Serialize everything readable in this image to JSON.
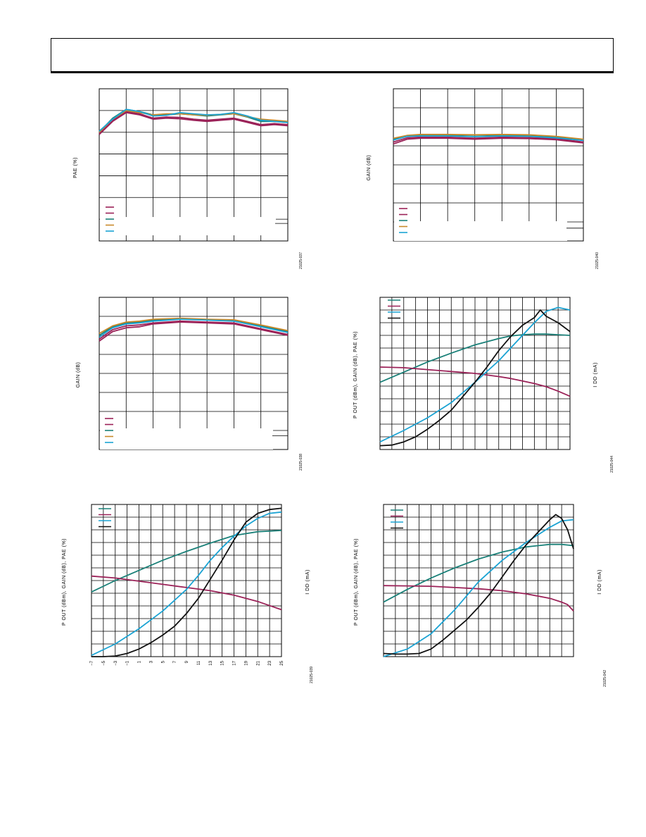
{
  "header": {},
  "colors": {
    "green": "#1a8078",
    "plum": "#9b2258",
    "cyan": "#1ba3d3",
    "orange": "#c98a2b",
    "black": "#111111"
  },
  "chart_data": [
    {
      "type": "line",
      "ylabel": "PAE (%)",
      "y2label": "",
      "figure_number": "21025-037",
      "xticks": [],
      "legend_colors": [
        "plum",
        "plum",
        "green",
        "orange",
        "cyan"
      ],
      "grid": {
        "cols": 7,
        "rows": 7
      },
      "ylim": [
        0,
        7
      ],
      "series": [
        {
          "color": "plum",
          "x": [
            0,
            0.5,
            1,
            1.5,
            2,
            2.5,
            3,
            3.5,
            4,
            4.5,
            5,
            5.5,
            6,
            6.5,
            7
          ],
          "values": [
            4.9,
            5.5,
            5.9,
            5.8,
            5.6,
            5.65,
            5.62,
            5.55,
            5.5,
            5.55,
            5.6,
            5.45,
            5.3,
            5.35,
            5.3
          ]
        },
        {
          "color": "plum",
          "x": [
            0,
            0.5,
            1,
            1.5,
            2,
            2.5,
            3,
            3.5,
            4,
            4.5,
            5,
            5.5,
            6,
            6.5,
            7
          ],
          "values": [
            4.95,
            5.55,
            5.95,
            5.85,
            5.65,
            5.7,
            5.68,
            5.6,
            5.55,
            5.6,
            5.65,
            5.5,
            5.35,
            5.4,
            5.35
          ]
        },
        {
          "color": "green",
          "x": [
            0,
            0.5,
            1,
            1.5,
            2,
            2.5,
            3,
            3.5,
            4,
            4.5,
            5,
            5.5,
            6,
            6.5,
            7
          ],
          "values": [
            5.0,
            5.65,
            6.05,
            5.95,
            5.8,
            5.8,
            5.85,
            5.8,
            5.75,
            5.8,
            5.85,
            5.7,
            5.5,
            5.5,
            5.45
          ]
        },
        {
          "color": "orange",
          "x": [
            0,
            0.5,
            1,
            1.5,
            2,
            2.5,
            3,
            3.5,
            4,
            4.5,
            5,
            5.5,
            6,
            6.5,
            7
          ],
          "values": [
            5.0,
            5.6,
            6.0,
            5.9,
            5.8,
            5.85,
            5.85,
            5.8,
            5.78,
            5.82,
            5.85,
            5.72,
            5.6,
            5.55,
            5.5
          ]
        },
        {
          "color": "cyan",
          "x": [
            0,
            0.5,
            1,
            1.5,
            2,
            2.5,
            3,
            3.5,
            4,
            4.5,
            5,
            5.5,
            6,
            6.5,
            7
          ],
          "values": [
            5.05,
            5.6,
            6.05,
            5.95,
            5.75,
            5.78,
            5.9,
            5.85,
            5.8,
            5.82,
            5.9,
            5.75,
            5.55,
            5.5,
            5.45
          ]
        }
      ]
    },
    {
      "type": "line",
      "ylabel": "GAIN (dB)",
      "y2label": "",
      "figure_number": "21025-040",
      "xticks": [],
      "legend_colors": [
        "plum",
        "plum",
        "green",
        "orange",
        "cyan"
      ],
      "grid": {
        "cols": 7,
        "rows": 8
      },
      "ylim": [
        0,
        8
      ],
      "series": [
        {
          "color": "plum",
          "x": [
            0,
            0.5,
            1,
            2,
            3,
            4,
            5,
            6,
            7
          ],
          "values": [
            5.1,
            5.35,
            5.4,
            5.4,
            5.35,
            5.4,
            5.38,
            5.32,
            5.15
          ]
        },
        {
          "color": "plum",
          "x": [
            0,
            0.5,
            1,
            2,
            3,
            4,
            5,
            6,
            7
          ],
          "values": [
            5.2,
            5.42,
            5.45,
            5.45,
            5.4,
            5.45,
            5.43,
            5.38,
            5.2
          ]
        },
        {
          "color": "green",
          "x": [
            0,
            0.5,
            1,
            2,
            3,
            4,
            5,
            6,
            7
          ],
          "values": [
            5.35,
            5.5,
            5.55,
            5.55,
            5.5,
            5.55,
            5.52,
            5.45,
            5.3
          ]
        },
        {
          "color": "orange",
          "x": [
            0,
            0.5,
            1,
            2,
            3,
            4,
            5,
            6,
            7
          ],
          "values": [
            5.4,
            5.55,
            5.6,
            5.6,
            5.58,
            5.6,
            5.58,
            5.5,
            5.35
          ]
        },
        {
          "color": "cyan",
          "x": [
            0,
            0.5,
            1,
            2,
            3,
            4,
            5,
            6,
            7
          ],
          "values": [
            5.3,
            5.5,
            5.52,
            5.52,
            5.48,
            5.52,
            5.5,
            5.42,
            5.28
          ]
        }
      ]
    },
    {
      "type": "line",
      "ylabel": "GAIN (dB)",
      "y2label": "",
      "figure_number": "21025-038",
      "xticks": [],
      "legend_colors": [
        "plum",
        "plum",
        "green",
        "orange",
        "cyan"
      ],
      "grid": {
        "cols": 7,
        "rows": 8
      },
      "ylim": [
        0,
        8
      ],
      "series": [
        {
          "color": "plum",
          "x": [
            0,
            0.5,
            1,
            1.5,
            2,
            3,
            4,
            5,
            6,
            7
          ],
          "values": [
            5.7,
            6.2,
            6.4,
            6.45,
            6.6,
            6.7,
            6.65,
            6.6,
            6.3,
            6.0
          ]
        },
        {
          "color": "plum",
          "x": [
            0,
            0.5,
            1,
            1.5,
            2,
            3,
            4,
            5,
            6,
            7
          ],
          "values": [
            5.8,
            6.3,
            6.5,
            6.55,
            6.65,
            6.75,
            6.7,
            6.65,
            6.35,
            6.05
          ]
        },
        {
          "color": "green",
          "x": [
            0,
            0.5,
            1,
            1.5,
            2,
            3,
            4,
            5,
            6,
            7
          ],
          "values": [
            6.0,
            6.45,
            6.65,
            6.7,
            6.8,
            6.88,
            6.82,
            6.8,
            6.5,
            6.2
          ]
        },
        {
          "color": "orange",
          "x": [
            0,
            0.5,
            1,
            1.5,
            2,
            3,
            4,
            5,
            6,
            7
          ],
          "values": [
            6.1,
            6.5,
            6.7,
            6.75,
            6.85,
            6.9,
            6.85,
            6.82,
            6.55,
            6.25
          ]
        },
        {
          "color": "cyan",
          "x": [
            0,
            0.5,
            1,
            1.5,
            2,
            3,
            4,
            5,
            6,
            7
          ],
          "values": [
            5.9,
            6.4,
            6.6,
            6.65,
            6.75,
            6.85,
            6.8,
            6.75,
            6.45,
            6.15
          ]
        }
      ]
    },
    {
      "type": "line",
      "ylabel": "P OUT (dBm), GAIN (dB), PAE (%)",
      "y2label": "I DD (mA)",
      "figure_number": "21025-044",
      "xticks": [],
      "legend_colors": [
        "green",
        "plum",
        "cyan",
        "black"
      ],
      "grid": {
        "cols": 16,
        "rows": 12
      },
      "ylim": [
        0,
        12
      ],
      "series": [
        {
          "color": "green",
          "x": [
            0,
            2,
            4,
            6,
            8,
            10,
            11,
            12,
            13,
            14,
            15,
            16
          ],
          "values": [
            5.3,
            6.1,
            6.9,
            7.6,
            8.25,
            8.75,
            8.95,
            9.05,
            9.1,
            9.1,
            9.05,
            9.0
          ]
        },
        {
          "color": "plum",
          "x": [
            0,
            2,
            4,
            6,
            8,
            10,
            11,
            12,
            13,
            14,
            15,
            16
          ],
          "values": [
            6.5,
            6.45,
            6.3,
            6.15,
            6.0,
            5.75,
            5.6,
            5.4,
            5.2,
            4.95,
            4.6,
            4.2
          ]
        },
        {
          "color": "cyan",
          "x": [
            0,
            2,
            4,
            6,
            8,
            10,
            12,
            13,
            14,
            15,
            16
          ],
          "values": [
            0.6,
            1.5,
            2.5,
            3.7,
            5.3,
            7.0,
            9.0,
            10.0,
            10.9,
            11.2,
            11.0
          ]
        },
        {
          "color": "black",
          "x": [
            0,
            1,
            2,
            3,
            4,
            5,
            6,
            7,
            8,
            9,
            10,
            11,
            12,
            13,
            13.5,
            14,
            15,
            16
          ],
          "values": [
            0.3,
            0.35,
            0.6,
            1.0,
            1.6,
            2.3,
            3.1,
            4.2,
            5.3,
            6.5,
            7.8,
            8.9,
            9.8,
            10.4,
            11.0,
            10.5,
            10.0,
            9.3
          ]
        }
      ]
    },
    {
      "type": "line",
      "ylabel": "P OUT (dBm), GAIN (dB), PAE (%)",
      "y2label": "I DD (mA)",
      "figure_number": "21025-039",
      "xticks": [
        "−7",
        "−5",
        "−3",
        "−1",
        "1",
        "3",
        "5",
        "7",
        "9",
        "11",
        "13",
        "15",
        "17",
        "19",
        "21",
        "23",
        "25"
      ],
      "legend_colors": [
        "green",
        "plum",
        "cyan",
        "black"
      ],
      "grid": {
        "cols": 16,
        "rows": 12
      },
      "ylim": [
        0,
        12
      ],
      "series": [
        {
          "color": "green",
          "x": [
            0,
            2,
            4,
            6,
            8,
            10,
            12,
            14,
            16
          ],
          "values": [
            5.1,
            6.0,
            6.8,
            7.6,
            8.3,
            8.95,
            9.55,
            9.85,
            9.95
          ]
        },
        {
          "color": "plum",
          "x": [
            0,
            2,
            4,
            6,
            8,
            10,
            12,
            14,
            16
          ],
          "values": [
            6.35,
            6.2,
            5.95,
            5.7,
            5.45,
            5.2,
            4.85,
            4.35,
            3.7
          ]
        },
        {
          "color": "cyan",
          "x": [
            0,
            2,
            4,
            6,
            8,
            9,
            10,
            11,
            12,
            13,
            14,
            15,
            16
          ],
          "values": [
            0.1,
            1.0,
            2.2,
            3.6,
            5.3,
            6.4,
            7.6,
            8.6,
            9.5,
            10.3,
            10.9,
            11.3,
            11.4
          ]
        },
        {
          "color": "black",
          "x": [
            0,
            1,
            2,
            3,
            4,
            5,
            6,
            7,
            8,
            9,
            10,
            11,
            12,
            13,
            14,
            15,
            16
          ],
          "values": [
            0.0,
            0.0,
            0.05,
            0.25,
            0.6,
            1.1,
            1.7,
            2.4,
            3.4,
            4.6,
            6.1,
            7.6,
            9.2,
            10.6,
            11.3,
            11.6,
            11.7
          ]
        }
      ]
    },
    {
      "type": "line",
      "ylabel": "P OUT (dBm), GAIN (dB), PAE (%)",
      "y2label": "I DD (mA)",
      "figure_number": "21025-042",
      "xticks": [],
      "legend_colors": [
        "green",
        "plum",
        "cyan",
        "black"
      ],
      "grid": {
        "cols": 16,
        "rows": 12
      },
      "ylim": [
        0,
        12
      ],
      "series": [
        {
          "color": "green",
          "x": [
            0,
            2,
            4,
            6,
            8,
            10,
            12,
            14,
            15,
            16
          ],
          "values": [
            4.3,
            5.3,
            6.2,
            7.0,
            7.7,
            8.25,
            8.65,
            8.85,
            8.85,
            8.75
          ]
        },
        {
          "color": "plum",
          "x": [
            0,
            2,
            4,
            6,
            8,
            10,
            12,
            14,
            15,
            15.5,
            16
          ],
          "values": [
            5.6,
            5.58,
            5.55,
            5.45,
            5.35,
            5.2,
            4.95,
            4.6,
            4.3,
            4.1,
            3.6
          ]
        },
        {
          "color": "cyan",
          "x": [
            0,
            2,
            4,
            6,
            8,
            10,
            12,
            14,
            15,
            16
          ],
          "values": [
            0.0,
            0.6,
            1.8,
            3.7,
            5.9,
            7.6,
            9.0,
            10.2,
            10.7,
            10.8
          ]
        },
        {
          "color": "black",
          "x": [
            0,
            1,
            2,
            3,
            4,
            5,
            6,
            7,
            8,
            9,
            10,
            11,
            12,
            13,
            14,
            14.5,
            15,
            15.5,
            16
          ],
          "values": [
            0.25,
            0.2,
            0.2,
            0.25,
            0.6,
            1.3,
            2.1,
            2.9,
            3.9,
            5.0,
            6.3,
            7.6,
            8.8,
            9.8,
            10.8,
            11.2,
            10.9,
            10.0,
            8.5
          ]
        }
      ]
    }
  ]
}
